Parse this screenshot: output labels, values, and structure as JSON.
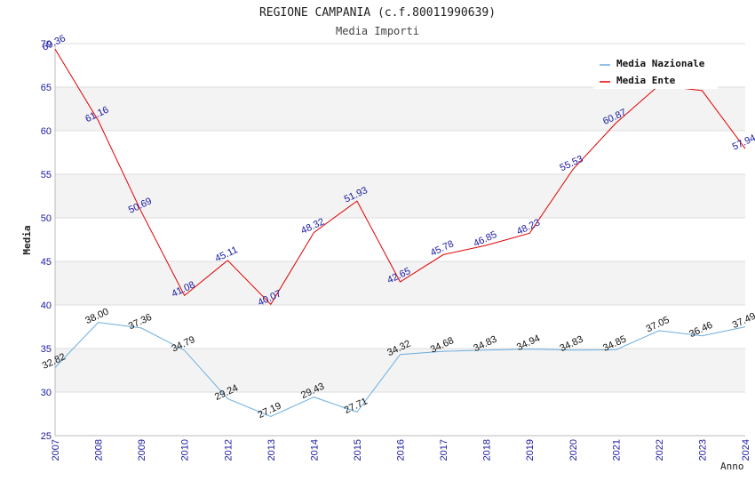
{
  "chart_data": {
    "type": "line",
    "title": "REGIONE CAMPANIA (c.f.80011990639)",
    "subtitle": "Media Importi",
    "ylabel": "Media",
    "xlabel": "Anno",
    "ylim": [
      25,
      70
    ],
    "yticks": [
      25,
      30,
      35,
      40,
      45,
      50,
      55,
      60,
      65,
      70
    ],
    "categories": [
      "2007",
      "2008",
      "2009",
      "2010",
      "2012",
      "2013",
      "2014",
      "2015",
      "2016",
      "2017",
      "2018",
      "2019",
      "2020",
      "2021",
      "2022",
      "2023",
      "2024"
    ],
    "series": [
      {
        "name": "Media Nazionale",
        "color": "#6aaee0",
        "values": [
          32.82,
          38.0,
          37.36,
          34.79,
          29.24,
          27.19,
          29.43,
          27.71,
          34.32,
          34.68,
          34.83,
          34.94,
          34.83,
          34.85,
          37.05,
          36.46,
          37.49
        ],
        "labels": [
          "32.82",
          "38.00",
          "37.36",
          "34.79",
          "29.24",
          "27.19",
          "29.43",
          "27.71",
          "34.32",
          "34.68",
          "34.83",
          "34.94",
          "34.83",
          "34.85",
          "37.05",
          "36.46",
          "37.49"
        ]
      },
      {
        "name": "Media Ente",
        "color": "#e00000",
        "values": [
          69.36,
          61.16,
          50.69,
          41.08,
          45.11,
          40.07,
          48.32,
          51.93,
          42.65,
          45.78,
          46.85,
          48.23,
          55.53,
          60.87,
          65.2,
          64.6,
          57.94
        ],
        "labels": [
          "69.36",
          "61.16",
          "50.69",
          "41.08",
          "45.11",
          "40.07",
          "48.32",
          "51.93",
          "42.65",
          "45.78",
          "46.85",
          "48.23",
          "55.53",
          "60.87",
          "",
          "",
          "57.94"
        ]
      }
    ],
    "grid": true,
    "legend": "top-right"
  }
}
